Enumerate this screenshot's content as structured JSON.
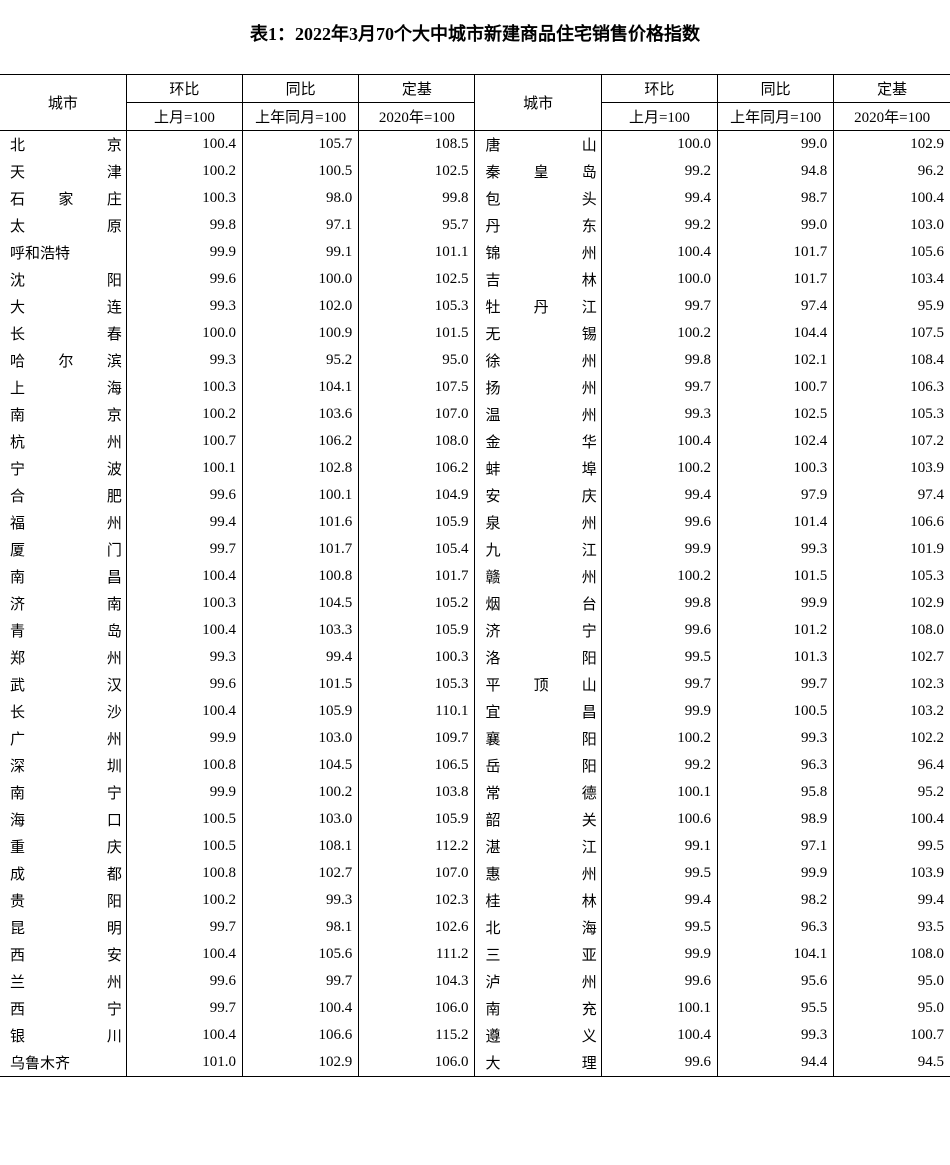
{
  "title": "表1：2022年3月70个大中城市新建商品住宅销售价格指数",
  "headers": {
    "city": "城市",
    "col1_top": "环比",
    "col1_sub": "上月=100",
    "col2_top": "同比",
    "col2_sub": "上年同月=100",
    "col3_top": "定基",
    "col3_sub": "2020年=100"
  },
  "left_rows": [
    {
      "c": "北　京",
      "v": [
        "100.4",
        "105.7",
        "108.5"
      ]
    },
    {
      "c": "天　津",
      "v": [
        "100.2",
        "100.5",
        "102.5"
      ]
    },
    {
      "c": "石家庄",
      "v": [
        "100.3",
        "98.0",
        "99.8"
      ]
    },
    {
      "c": "太　原",
      "v": [
        "99.8",
        "97.1",
        "95.7"
      ]
    },
    {
      "c": "呼和浩特",
      "v": [
        "99.9",
        "99.1",
        "101.1"
      ]
    },
    {
      "c": "沈　阳",
      "v": [
        "99.6",
        "100.0",
        "102.5"
      ]
    },
    {
      "c": "大　连",
      "v": [
        "99.3",
        "102.0",
        "105.3"
      ]
    },
    {
      "c": "长　春",
      "v": [
        "100.0",
        "100.9",
        "101.5"
      ]
    },
    {
      "c": "哈尔滨",
      "v": [
        "99.3",
        "95.2",
        "95.0"
      ]
    },
    {
      "c": "上　海",
      "v": [
        "100.3",
        "104.1",
        "107.5"
      ]
    },
    {
      "c": "南　京",
      "v": [
        "100.2",
        "103.6",
        "107.0"
      ]
    },
    {
      "c": "杭　州",
      "v": [
        "100.7",
        "106.2",
        "108.0"
      ]
    },
    {
      "c": "宁　波",
      "v": [
        "100.1",
        "102.8",
        "106.2"
      ]
    },
    {
      "c": "合　肥",
      "v": [
        "99.6",
        "100.1",
        "104.9"
      ]
    },
    {
      "c": "福　州",
      "v": [
        "99.4",
        "101.6",
        "105.9"
      ]
    },
    {
      "c": "厦　门",
      "v": [
        "99.7",
        "101.7",
        "105.4"
      ]
    },
    {
      "c": "南　昌",
      "v": [
        "100.4",
        "100.8",
        "101.7"
      ]
    },
    {
      "c": "济　南",
      "v": [
        "100.3",
        "104.5",
        "105.2"
      ]
    },
    {
      "c": "青　岛",
      "v": [
        "100.4",
        "103.3",
        "105.9"
      ]
    },
    {
      "c": "郑　州",
      "v": [
        "99.3",
        "99.4",
        "100.3"
      ]
    },
    {
      "c": "武　汉",
      "v": [
        "99.6",
        "101.5",
        "105.3"
      ]
    },
    {
      "c": "长　沙",
      "v": [
        "100.4",
        "105.9",
        "110.1"
      ]
    },
    {
      "c": "广　州",
      "v": [
        "99.9",
        "103.0",
        "109.7"
      ]
    },
    {
      "c": "深　圳",
      "v": [
        "100.8",
        "104.5",
        "106.5"
      ]
    },
    {
      "c": "南　宁",
      "v": [
        "99.9",
        "100.2",
        "103.8"
      ]
    },
    {
      "c": "海　口",
      "v": [
        "100.5",
        "103.0",
        "105.9"
      ]
    },
    {
      "c": "重　庆",
      "v": [
        "100.5",
        "108.1",
        "112.2"
      ]
    },
    {
      "c": "成　都",
      "v": [
        "100.8",
        "102.7",
        "107.0"
      ]
    },
    {
      "c": "贵　阳",
      "v": [
        "100.2",
        "99.3",
        "102.3"
      ]
    },
    {
      "c": "昆　明",
      "v": [
        "99.7",
        "98.1",
        "102.6"
      ]
    },
    {
      "c": "西　安",
      "v": [
        "100.4",
        "105.6",
        "111.2"
      ]
    },
    {
      "c": "兰　州",
      "v": [
        "99.6",
        "99.7",
        "104.3"
      ]
    },
    {
      "c": "西　宁",
      "v": [
        "99.7",
        "100.4",
        "106.0"
      ]
    },
    {
      "c": "银　川",
      "v": [
        "100.4",
        "106.6",
        "115.2"
      ]
    },
    {
      "c": "乌鲁木齐",
      "v": [
        "101.0",
        "102.9",
        "106.0"
      ]
    }
  ],
  "right_rows": [
    {
      "c": "唐　山",
      "v": [
        "100.0",
        "99.0",
        "102.9"
      ]
    },
    {
      "c": "秦皇岛",
      "v": [
        "99.2",
        "94.8",
        "96.2"
      ]
    },
    {
      "c": "包　头",
      "v": [
        "99.4",
        "98.7",
        "100.4"
      ]
    },
    {
      "c": "丹　东",
      "v": [
        "99.2",
        "99.0",
        "103.0"
      ]
    },
    {
      "c": "锦　州",
      "v": [
        "100.4",
        "101.7",
        "105.6"
      ]
    },
    {
      "c": "吉　林",
      "v": [
        "100.0",
        "101.7",
        "103.4"
      ]
    },
    {
      "c": "牡丹江",
      "v": [
        "99.7",
        "97.4",
        "95.9"
      ]
    },
    {
      "c": "无　锡",
      "v": [
        "100.2",
        "104.4",
        "107.5"
      ]
    },
    {
      "c": "徐　州",
      "v": [
        "99.8",
        "102.1",
        "108.4"
      ]
    },
    {
      "c": "扬　州",
      "v": [
        "99.7",
        "100.7",
        "106.3"
      ]
    },
    {
      "c": "温　州",
      "v": [
        "99.3",
        "102.5",
        "105.3"
      ]
    },
    {
      "c": "金　华",
      "v": [
        "100.4",
        "102.4",
        "107.2"
      ]
    },
    {
      "c": "蚌　埠",
      "v": [
        "100.2",
        "100.3",
        "103.9"
      ]
    },
    {
      "c": "安　庆",
      "v": [
        "99.4",
        "97.9",
        "97.4"
      ]
    },
    {
      "c": "泉　州",
      "v": [
        "99.6",
        "101.4",
        "106.6"
      ]
    },
    {
      "c": "九　江",
      "v": [
        "99.9",
        "99.3",
        "101.9"
      ]
    },
    {
      "c": "赣　州",
      "v": [
        "100.2",
        "101.5",
        "105.3"
      ]
    },
    {
      "c": "烟　台",
      "v": [
        "99.8",
        "99.9",
        "102.9"
      ]
    },
    {
      "c": "济　宁",
      "v": [
        "99.6",
        "101.2",
        "108.0"
      ]
    },
    {
      "c": "洛　阳",
      "v": [
        "99.5",
        "101.3",
        "102.7"
      ]
    },
    {
      "c": "平顶山",
      "v": [
        "99.7",
        "99.7",
        "102.3"
      ]
    },
    {
      "c": "宜　昌",
      "v": [
        "99.9",
        "100.5",
        "103.2"
      ]
    },
    {
      "c": "襄　阳",
      "v": [
        "100.2",
        "99.3",
        "102.2"
      ]
    },
    {
      "c": "岳　阳",
      "v": [
        "99.2",
        "96.3",
        "96.4"
      ]
    },
    {
      "c": "常　德",
      "v": [
        "100.1",
        "95.8",
        "95.2"
      ]
    },
    {
      "c": "韶　关",
      "v": [
        "100.6",
        "98.9",
        "100.4"
      ]
    },
    {
      "c": "湛　江",
      "v": [
        "99.1",
        "97.1",
        "99.5"
      ]
    },
    {
      "c": "惠　州",
      "v": [
        "99.5",
        "99.9",
        "103.9"
      ]
    },
    {
      "c": "桂　林",
      "v": [
        "99.4",
        "98.2",
        "99.4"
      ]
    },
    {
      "c": "北　海",
      "v": [
        "99.5",
        "96.3",
        "93.5"
      ]
    },
    {
      "c": "三　亚",
      "v": [
        "99.9",
        "104.1",
        "108.0"
      ]
    },
    {
      "c": "泸　州",
      "v": [
        "99.6",
        "95.6",
        "95.0"
      ]
    },
    {
      "c": "南　充",
      "v": [
        "100.1",
        "95.5",
        "95.0"
      ]
    },
    {
      "c": "遵　义",
      "v": [
        "100.4",
        "99.3",
        "100.7"
      ]
    },
    {
      "c": "大　理",
      "v": [
        "99.6",
        "94.4",
        "94.5"
      ]
    }
  ]
}
